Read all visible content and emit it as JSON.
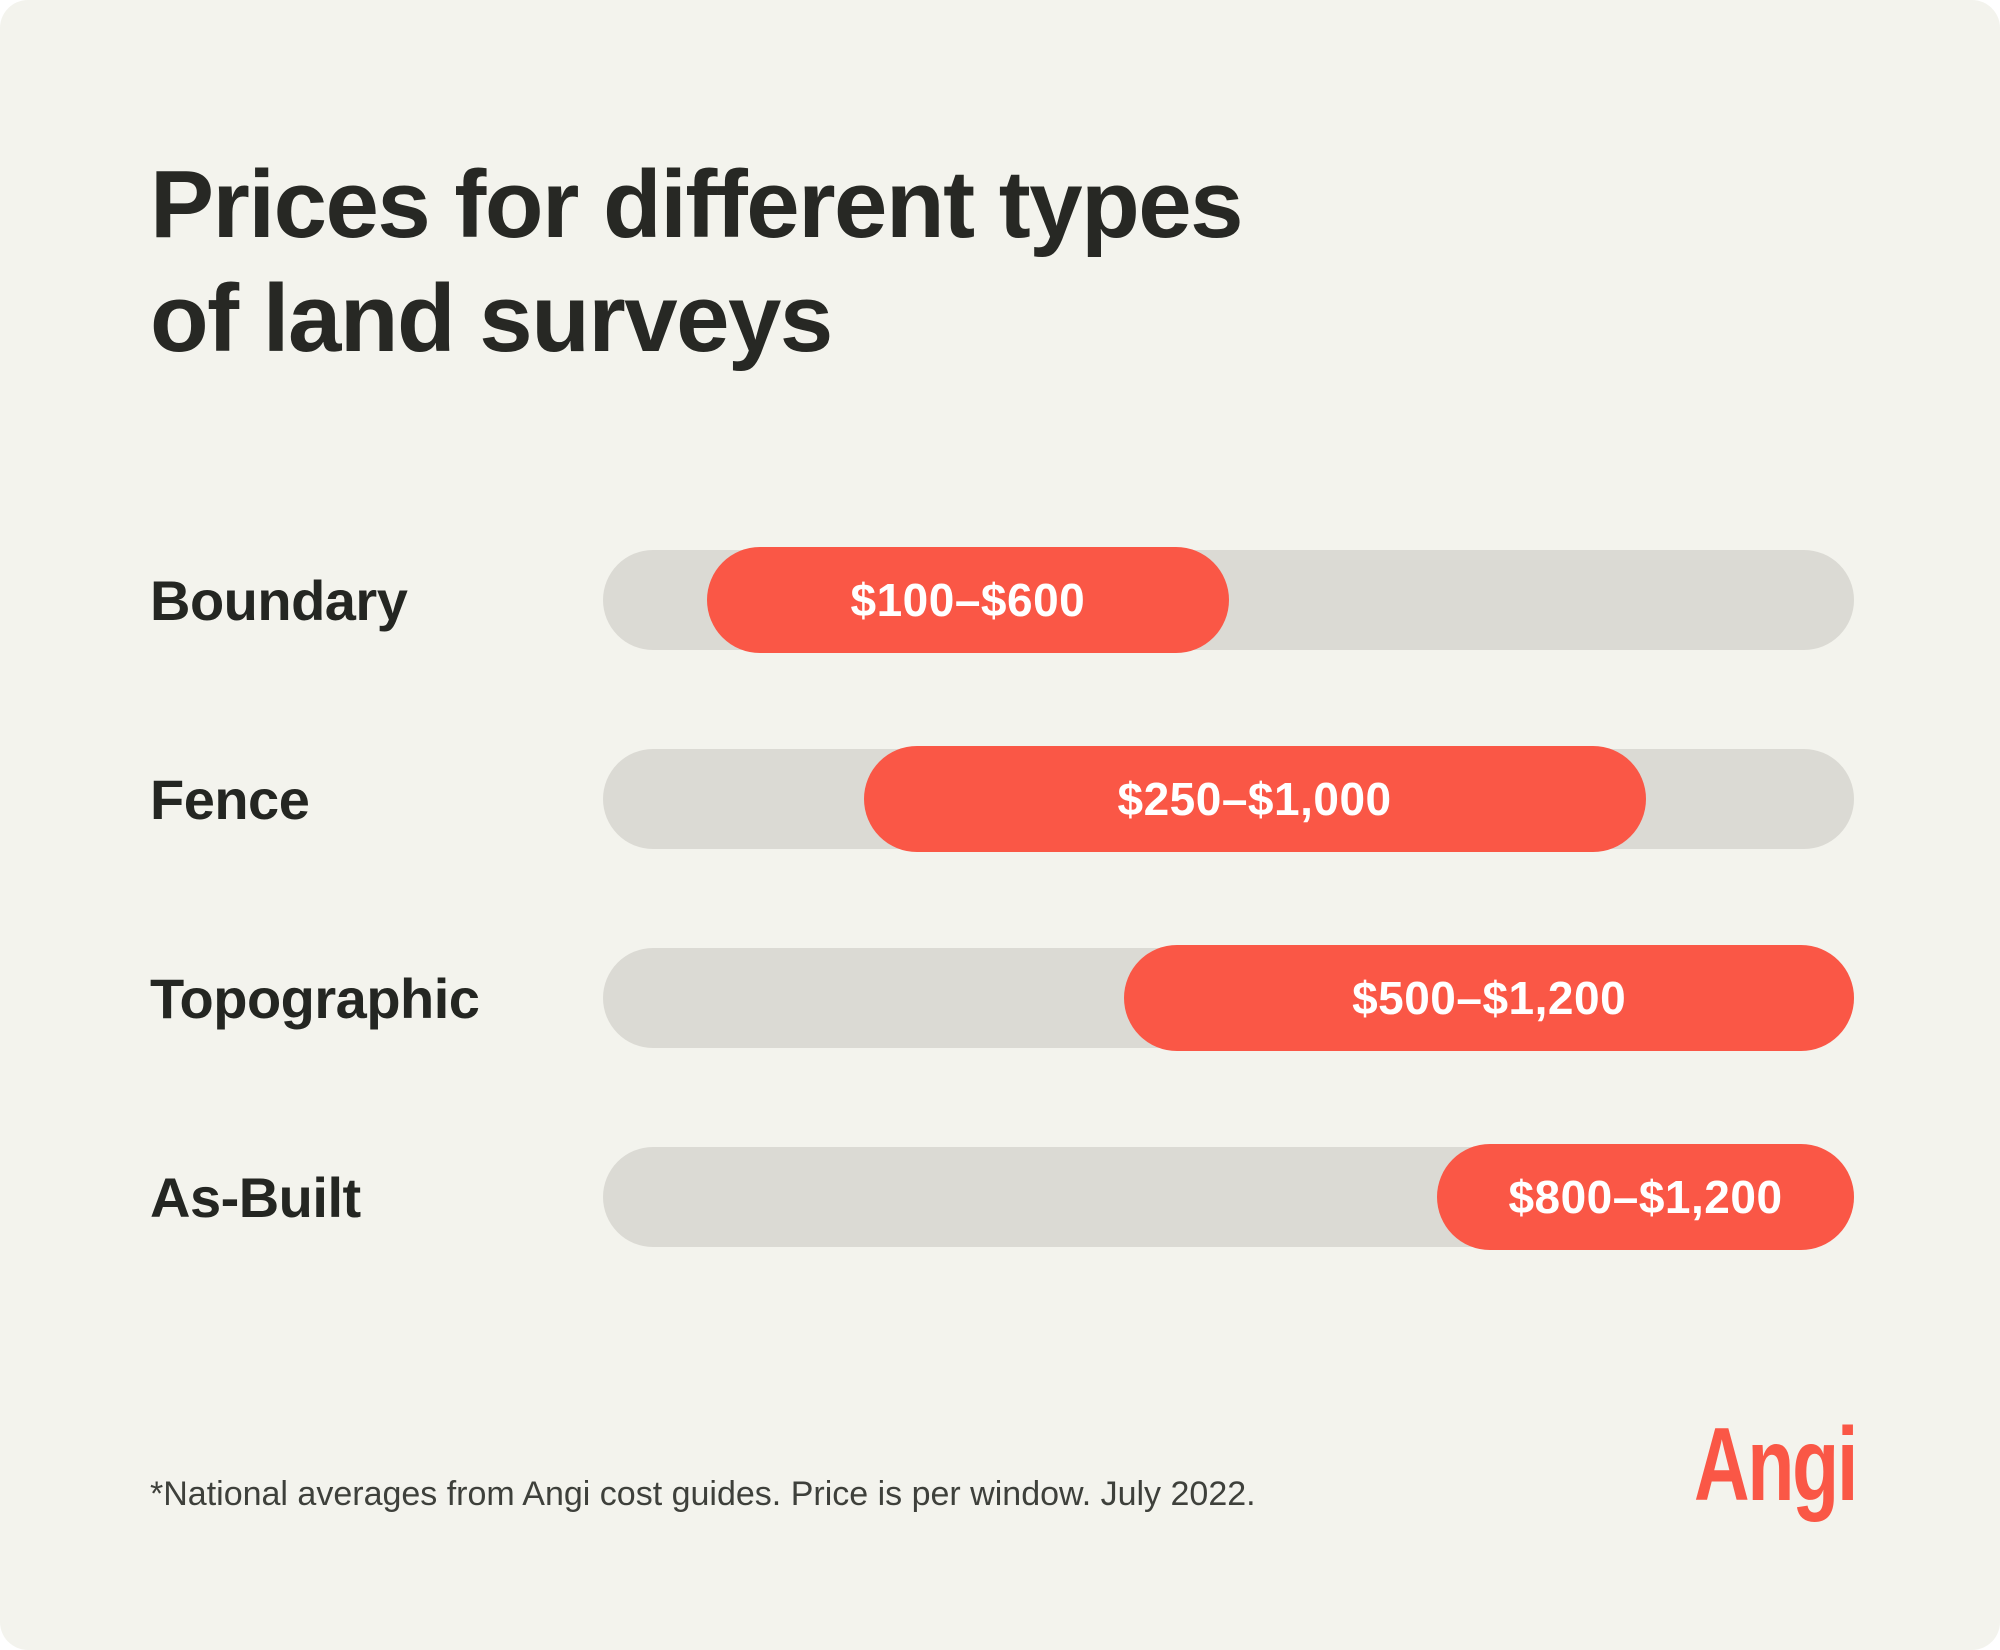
{
  "page": {
    "background": "#FFFFFF",
    "card_background": "#F3F3ED"
  },
  "title": {
    "line1": "Prices for different types",
    "line2": "of land surveys"
  },
  "chart_data": {
    "type": "bar",
    "orientation": "horizontal-range",
    "axis_min": 0,
    "axis_max": 1200,
    "grid": false,
    "legend": false,
    "track_color": "#DBDAD4",
    "bar_color": "#FA5746",
    "bar_label_color": "#FFFFFF",
    "categories": [
      "Boundary",
      "Fence",
      "Topographic",
      "As-Built"
    ],
    "rows": [
      {
        "category": "Boundary",
        "low": 100,
        "high": 600,
        "label": "$100–$600"
      },
      {
        "category": "Fence",
        "low": 250,
        "high": 1000,
        "label": "$250–$1,000"
      },
      {
        "category": "Topographic",
        "low": 500,
        "high": 1200,
        "label": "$500–$1,200"
      },
      {
        "category": "As-Built",
        "low": 800,
        "high": 1200,
        "label": "$800–$1,200"
      }
    ]
  },
  "footnote": "*National averages from Angi cost guides. Price is per window. July 2022.",
  "logo": {
    "text": "Angi",
    "color": "#FA5746"
  }
}
